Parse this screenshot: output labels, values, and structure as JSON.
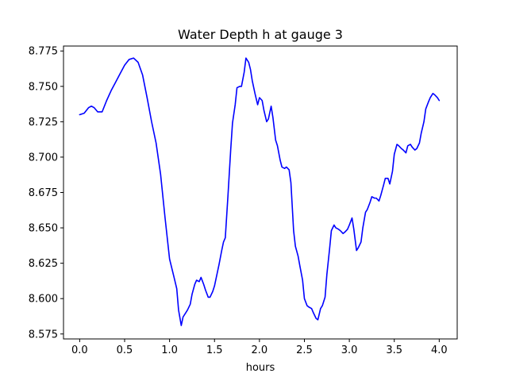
{
  "chart_data": {
    "type": "line",
    "title": "Water Depth h at gauge 3",
    "xlabel": "hours",
    "ylabel": "",
    "xlim": [
      -0.18,
      4.2
    ],
    "ylim": [
      8.5715,
      8.7785
    ],
    "x_ticks": [
      0.0,
      0.5,
      1.0,
      1.5,
      2.0,
      2.5,
      3.0,
      3.5,
      4.0
    ],
    "x_tick_labels": [
      "0.0",
      "0.5",
      "1.0",
      "1.5",
      "2.0",
      "2.5",
      "3.0",
      "3.5",
      "4.0"
    ],
    "y_ticks": [
      8.575,
      8.6,
      8.625,
      8.65,
      8.675,
      8.7,
      8.725,
      8.75,
      8.775
    ],
    "y_tick_labels": [
      "8.575",
      "8.600",
      "8.625",
      "8.650",
      "8.675",
      "8.700",
      "8.725",
      "8.750",
      "8.775"
    ],
    "grid": false,
    "series": [
      {
        "color": "#0000ff",
        "x": [
          0.0,
          0.05,
          0.1,
          0.13,
          0.16,
          0.2,
          0.25,
          0.3,
          0.35,
          0.4,
          0.45,
          0.5,
          0.55,
          0.6,
          0.65,
          0.7,
          0.75,
          0.8,
          0.85,
          0.9,
          0.95,
          1.0,
          1.05,
          1.08,
          1.1,
          1.13,
          1.15,
          1.18,
          1.2,
          1.23,
          1.25,
          1.28,
          1.3,
          1.33,
          1.35,
          1.38,
          1.4,
          1.43,
          1.45,
          1.48,
          1.5,
          1.53,
          1.55,
          1.58,
          1.6,
          1.62,
          1.65,
          1.68,
          1.7,
          1.73,
          1.75,
          1.78,
          1.8,
          1.83,
          1.85,
          1.88,
          1.9,
          1.92,
          1.95,
          1.98,
          2.0,
          2.03,
          2.05,
          2.08,
          2.1,
          2.13,
          2.15,
          2.18,
          2.2,
          2.23,
          2.25,
          2.28,
          2.3,
          2.33,
          2.35,
          2.38,
          2.4,
          2.43,
          2.45,
          2.48,
          2.5,
          2.53,
          2.55,
          2.58,
          2.6,
          2.63,
          2.65,
          2.68,
          2.7,
          2.73,
          2.75,
          2.78,
          2.8,
          2.83,
          2.85,
          2.88,
          2.9,
          2.93,
          2.95,
          2.98,
          3.0,
          3.03,
          3.05,
          3.08,
          3.1,
          3.13,
          3.15,
          3.18,
          3.2,
          3.23,
          3.25,
          3.28,
          3.3,
          3.33,
          3.35,
          3.38,
          3.4,
          3.43,
          3.45,
          3.48,
          3.5,
          3.53,
          3.55,
          3.58,
          3.6,
          3.63,
          3.65,
          3.68,
          3.7,
          3.73,
          3.75,
          3.78,
          3.8,
          3.83,
          3.85,
          3.88,
          3.9,
          3.93,
          3.95,
          3.98,
          4.0
        ],
        "y": [
          8.73,
          8.731,
          8.735,
          8.736,
          8.735,
          8.732,
          8.732,
          8.74,
          8.747,
          8.753,
          8.759,
          8.765,
          8.769,
          8.77,
          8.767,
          8.758,
          8.742,
          8.725,
          8.71,
          8.688,
          8.657,
          8.628,
          8.615,
          8.607,
          8.592,
          8.581,
          8.587,
          8.59,
          8.592,
          8.596,
          8.603,
          8.61,
          8.613,
          8.612,
          8.615,
          8.61,
          8.606,
          8.601,
          8.601,
          8.605,
          8.609,
          8.618,
          8.624,
          8.634,
          8.64,
          8.643,
          8.673,
          8.705,
          8.724,
          8.737,
          8.749,
          8.75,
          8.75,
          8.76,
          8.77,
          8.767,
          8.762,
          8.754,
          8.745,
          8.737,
          8.742,
          8.74,
          8.733,
          8.725,
          8.727,
          8.736,
          8.728,
          8.712,
          8.708,
          8.698,
          8.693,
          8.692,
          8.693,
          8.691,
          8.682,
          8.648,
          8.637,
          8.63,
          8.623,
          8.613,
          8.6,
          8.595,
          8.594,
          8.593,
          8.59,
          8.586,
          8.585,
          8.593,
          8.595,
          8.601,
          8.617,
          8.635,
          8.648,
          8.652,
          8.65,
          8.649,
          8.648,
          8.646,
          8.647,
          8.649,
          8.652,
          8.657,
          8.649,
          8.634,
          8.636,
          8.64,
          8.65,
          8.661,
          8.663,
          8.668,
          8.672,
          8.671,
          8.671,
          8.669,
          8.673,
          8.68,
          8.685,
          8.685,
          8.681,
          8.69,
          8.702,
          8.709,
          8.708,
          8.706,
          8.705,
          8.703,
          8.708,
          8.709,
          8.707,
          8.705,
          8.706,
          8.71,
          8.717,
          8.725,
          8.734,
          8.739,
          8.742,
          8.745,
          8.744,
          8.742,
          8.74
        ]
      }
    ]
  }
}
